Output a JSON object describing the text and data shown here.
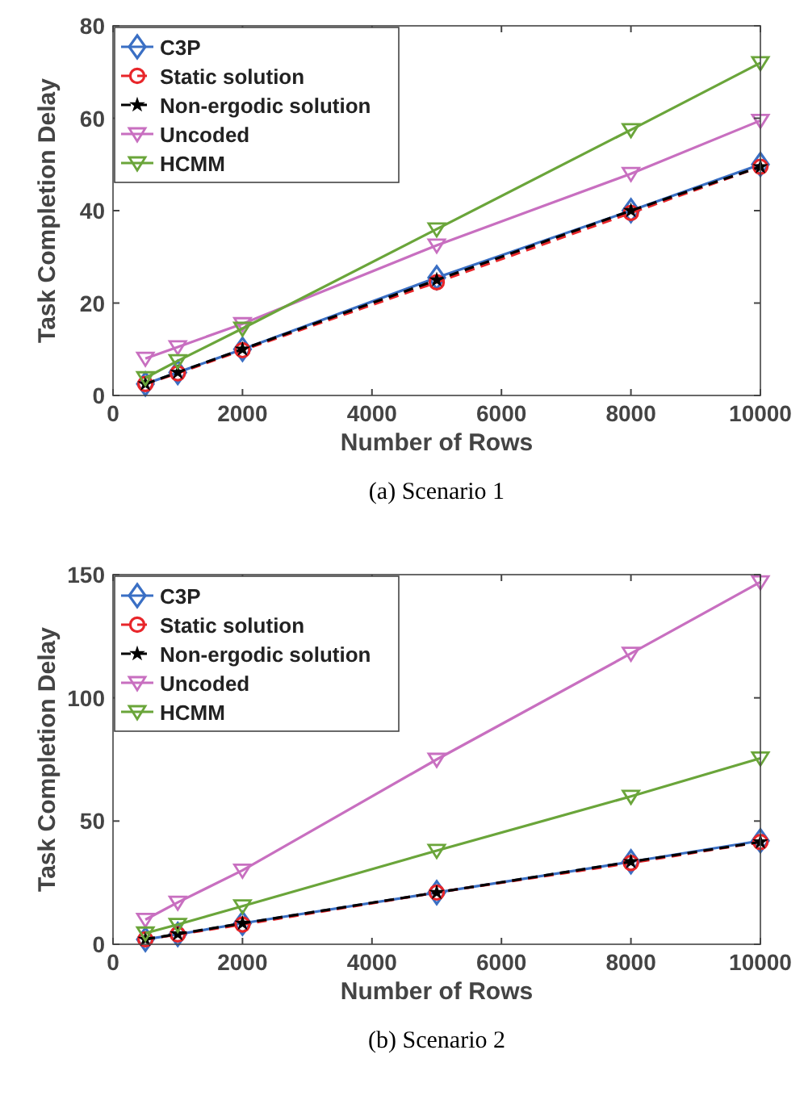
{
  "chart_data": [
    {
      "type": "line",
      "xlabel": "Number of Rows",
      "ylabel": "Task Completion Delay",
      "annotations": [
        "(a)  Scenario 1"
      ],
      "x": [
        500,
        1000,
        2000,
        5000,
        8000,
        10000
      ],
      "xlim": [
        0,
        10000
      ],
      "xticks": [
        0,
        2000,
        4000,
        6000,
        8000,
        10000
      ],
      "ylim": [
        0,
        80
      ],
      "yticks": [
        0,
        20,
        40,
        60,
        80
      ],
      "grid": false,
      "legend": "top left",
      "series": [
        {
          "name": "C3P",
          "color": "#3a6fc4",
          "marker": "diamond",
          "line_style": "solid",
          "values": [
            2.5,
            5,
            10,
            25.5,
            40,
            50
          ]
        },
        {
          "name": "Static solution",
          "color": "#e8262a",
          "marker": "circle",
          "line_style": "dashed",
          "values": [
            2.5,
            4.8,
            9.8,
            24.5,
            39.5,
            49.5
          ]
        },
        {
          "name": "Non-ergodic solution",
          "color": "#000000",
          "marker": "star",
          "line_style": "dashed",
          "values": [
            2.5,
            5,
            10,
            25,
            40,
            49.5
          ]
        },
        {
          "name": "Uncoded",
          "color": "#c86fc0",
          "marker": "triangle",
          "line_style": "solid",
          "values": [
            8,
            10.5,
            15.5,
            32.5,
            48,
            59.5
          ]
        },
        {
          "name": "HCMM",
          "color": "#6aa53a",
          "marker": "triangle",
          "line_style": "solid",
          "values": [
            3.8,
            7.5,
            14.5,
            36,
            57.5,
            72
          ]
        }
      ]
    },
    {
      "type": "line",
      "xlabel": "Number of Rows",
      "ylabel": "Task Completion Delay",
      "annotations": [
        "(b)  Scenario 2"
      ],
      "x": [
        500,
        1000,
        2000,
        5000,
        8000,
        10000
      ],
      "xlim": [
        0,
        10000
      ],
      "xticks": [
        0,
        2000,
        4000,
        6000,
        8000,
        10000
      ],
      "ylim": [
        0,
        150
      ],
      "yticks": [
        0,
        50,
        100,
        150
      ],
      "grid": false,
      "legend": "top left",
      "series": [
        {
          "name": "C3P",
          "color": "#3a6fc4",
          "marker": "diamond",
          "line_style": "solid",
          "values": [
            2,
            4,
            8.5,
            21,
            33.5,
            42
          ]
        },
        {
          "name": "Static solution",
          "color": "#e8262a",
          "marker": "circle",
          "line_style": "dashed",
          "values": [
            2,
            4,
            8,
            21,
            33,
            41.5
          ]
        },
        {
          "name": "Non-ergodic solution",
          "color": "#000000",
          "marker": "star",
          "line_style": "dashed",
          "values": [
            2,
            4.2,
            8.5,
            21,
            33.5,
            41.5
          ]
        },
        {
          "name": "Uncoded",
          "color": "#c86fc0",
          "marker": "triangle",
          "line_style": "solid",
          "values": [
            10,
            17,
            30,
            75,
            118,
            147
          ]
        },
        {
          "name": "HCMM",
          "color": "#6aa53a",
          "marker": "triangle",
          "line_style": "solid",
          "values": [
            4.5,
            8,
            15.5,
            38,
            60,
            75.5
          ]
        }
      ]
    }
  ]
}
